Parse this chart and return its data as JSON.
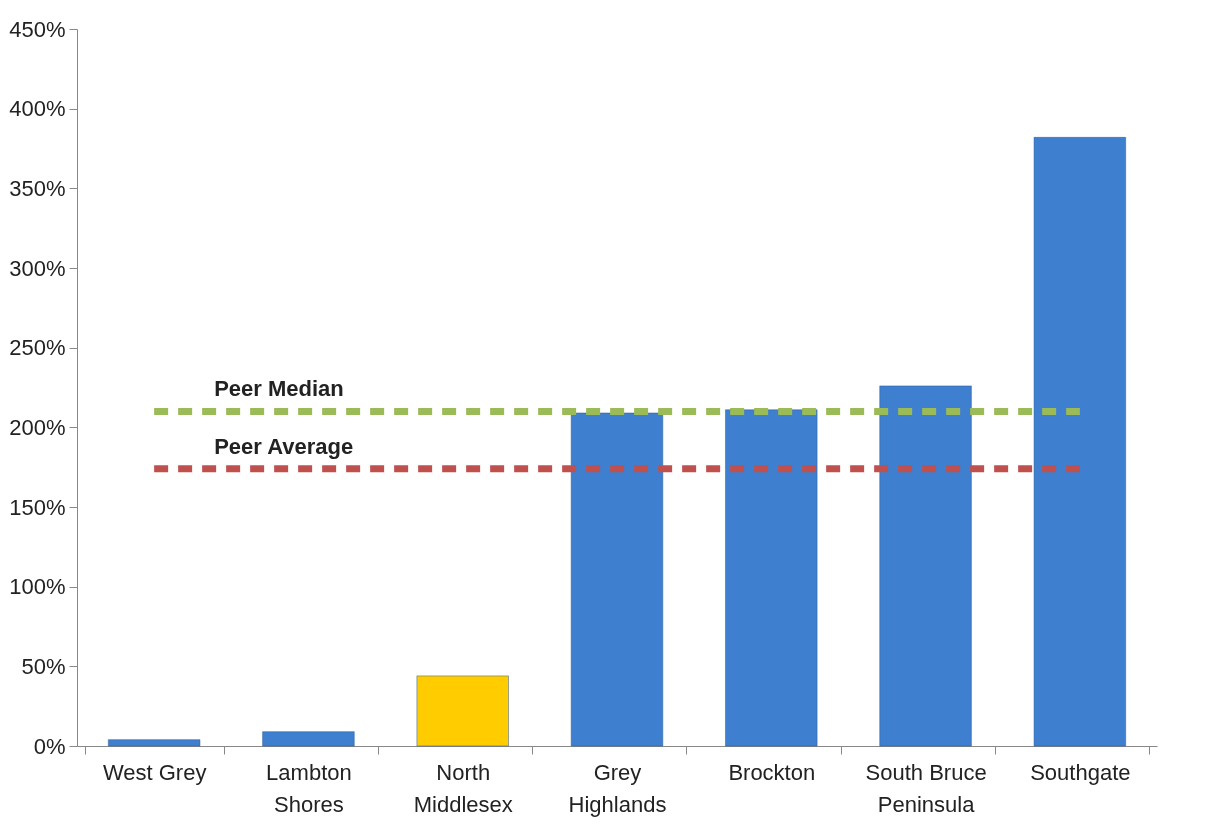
{
  "chart_data": {
    "type": "bar",
    "categories": [
      "West Grey",
      "Lambton Shores",
      "North Middlesex",
      "Grey Highlands",
      "Brockton",
      "South Bruce Peninsula",
      "Southgate"
    ],
    "values": [
      4,
      9,
      44,
      209,
      211,
      226,
      382
    ],
    "colors": [
      "#3f7fcf",
      "#3f7fcf",
      "#ffcc00",
      "#3f7fcf",
      "#3f7fcf",
      "#3f7fcf",
      "#3f7fcf"
    ],
    "ylim": [
      0,
      450
    ],
    "yticks": [
      {
        "value": 0,
        "label": "0%"
      },
      {
        "value": 50,
        "label": "50%"
      },
      {
        "value": 100,
        "label": "100%"
      },
      {
        "value": 150,
        "label": "150%"
      },
      {
        "value": 200,
        "label": "200%"
      },
      {
        "value": 250,
        "label": "250%"
      },
      {
        "value": 300,
        "label": "300%"
      },
      {
        "value": 350,
        "label": "350%"
      },
      {
        "value": 400,
        "label": "400%"
      },
      {
        "value": 450,
        "label": "450%"
      }
    ],
    "ref_lines": [
      {
        "axis": "y",
        "value": 210,
        "label": "Peer Median",
        "color": "#9bbb59",
        "line_style": "dashed"
      },
      {
        "axis": "y",
        "value": 174,
        "label": "Peer Average",
        "color": "#c0504d",
        "line_style": "dashed"
      }
    ],
    "grid": false,
    "legend": false
  }
}
